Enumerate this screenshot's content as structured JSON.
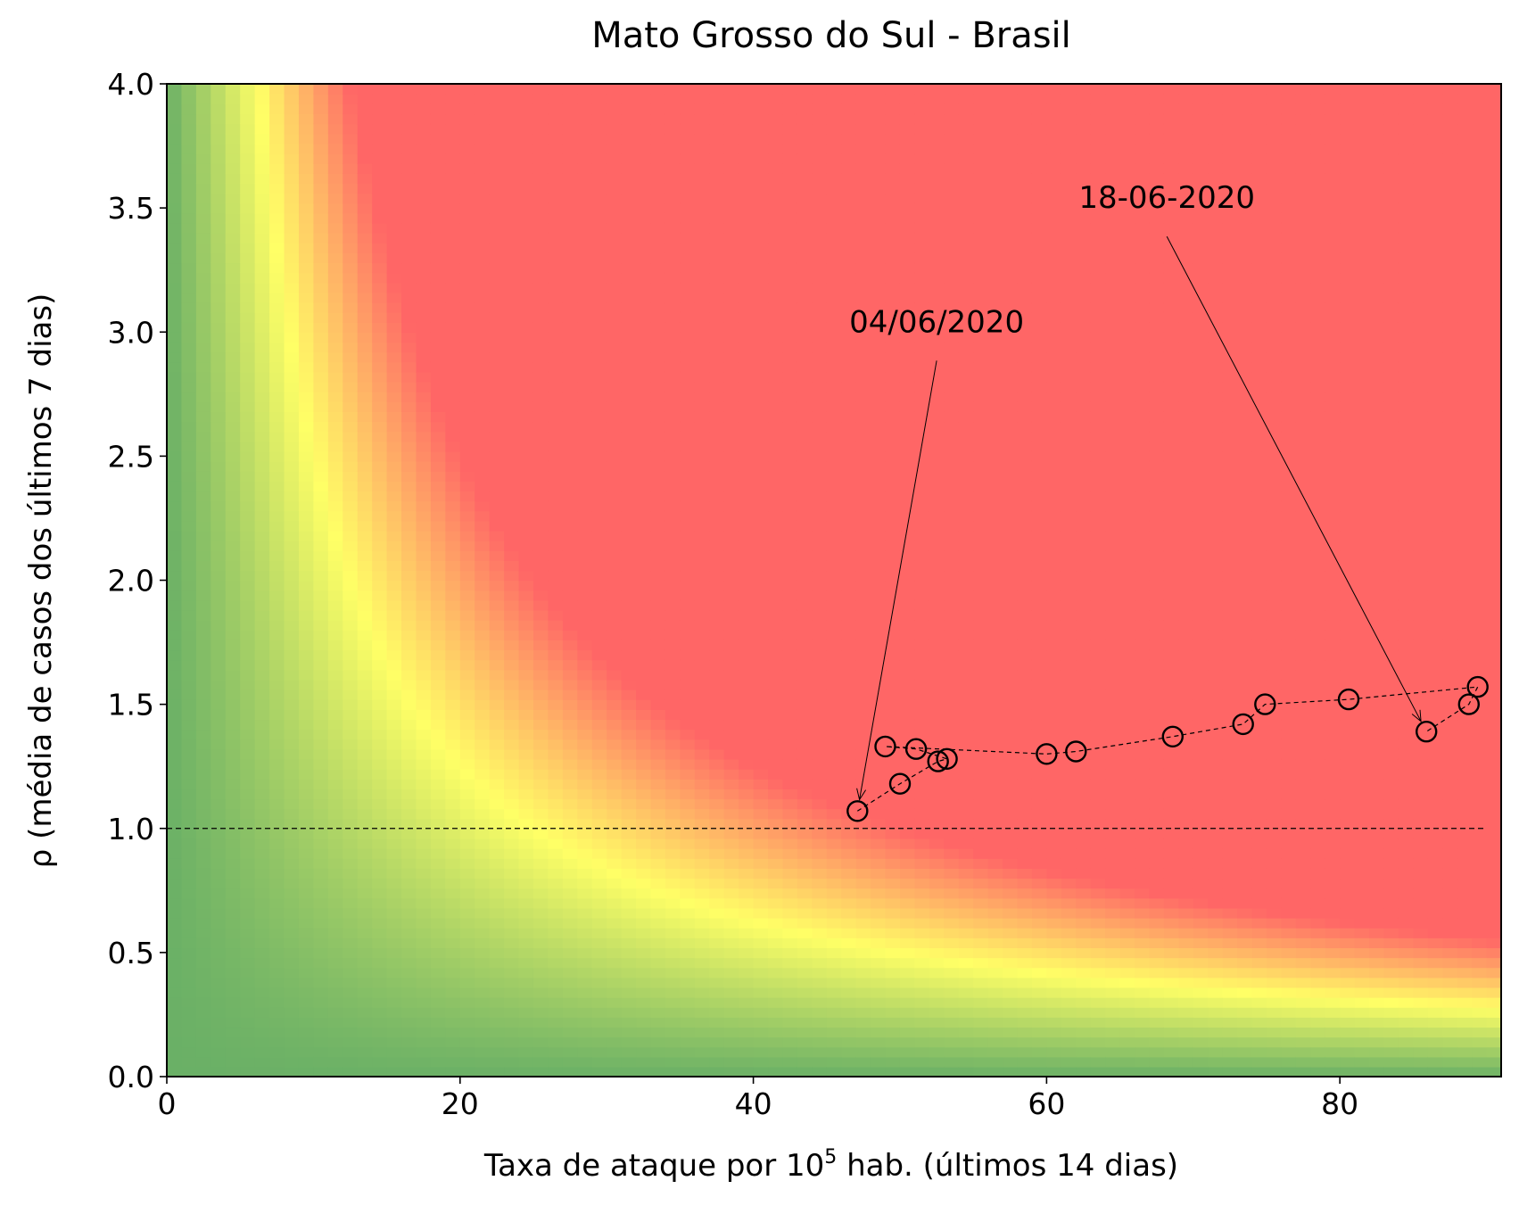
{
  "chart_data": {
    "type": "scatter",
    "title": "Mato Grosso do Sul - Brasil",
    "xlabel_prefix": "Taxa de ataque por 10",
    "xlabel_sup": "5",
    "xlabel_suffix": " hab. (últimos 14 dias)",
    "ylabel": "ρ (média de casos dos últimos 7 dias)",
    "xlim": [
      0,
      91
    ],
    "ylim": [
      0,
      4
    ],
    "x_ticks": [
      0,
      20,
      40,
      60,
      80
    ],
    "x_tick_labels": [
      "0",
      "20",
      "40",
      "60",
      "80"
    ],
    "y_ticks": [
      0,
      0.5,
      1,
      1.5,
      2,
      2.5,
      3,
      3.5,
      4
    ],
    "y_tick_labels": [
      "0.0",
      "0.5",
      "1.0",
      "1.5",
      "2.0",
      "2.5",
      "3.0",
      "3.5",
      "4.0"
    ],
    "reference_line": {
      "y": 1.0,
      "style": "dashed"
    },
    "background": "risk heatmap (green → yellow → red) by x·ρ",
    "colors": {
      "green": "#6ab066",
      "yellow": "#ffff66",
      "red": "#ff6666",
      "marker": "#000000"
    },
    "series": [
      {
        "points": [
          {
            "x": 47.1,
            "y": 1.07
          },
          {
            "x": 50.0,
            "y": 1.18
          },
          {
            "x": 52.6,
            "y": 1.27
          },
          {
            "x": 53.2,
            "y": 1.28
          },
          {
            "x": 51.1,
            "y": 1.32
          },
          {
            "x": 49.0,
            "y": 1.33
          },
          {
            "x": 60.0,
            "y": 1.3
          },
          {
            "x": 62.0,
            "y": 1.31
          },
          {
            "x": 68.6,
            "y": 1.37
          },
          {
            "x": 73.4,
            "y": 1.42
          },
          {
            "x": 74.9,
            "y": 1.5
          },
          {
            "x": 80.6,
            "y": 1.52
          },
          {
            "x": 89.4,
            "y": 1.57
          },
          {
            "x": 88.8,
            "y": 1.5
          },
          {
            "x": 85.9,
            "y": 1.39
          }
        ]
      }
    ],
    "annotations": [
      {
        "text": "04/06/2020",
        "text_x": 52.5,
        "text_y": 3.0,
        "point_x": 47.1,
        "point_y": 1.07
      },
      {
        "text": "18-06-2020",
        "text_x": 68.2,
        "text_y": 3.5,
        "point_x": 85.9,
        "point_y": 1.39
      }
    ]
  }
}
